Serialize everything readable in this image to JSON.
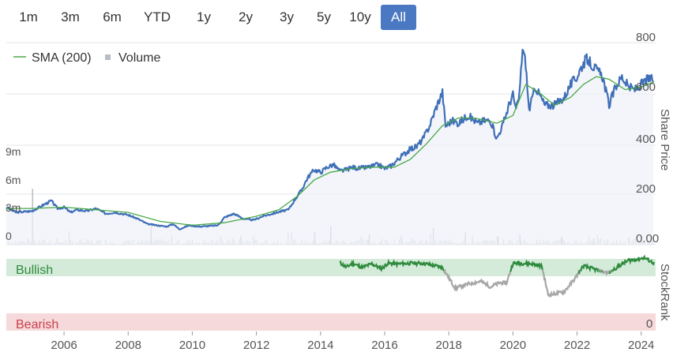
{
  "range_selector": {
    "buttons": [
      "1m",
      "3m",
      "6m",
      "YTD",
      "1y",
      "2y",
      "3y",
      "5y",
      "10y",
      "All"
    ],
    "active": "All"
  },
  "colors": {
    "price": "#3f6fb8",
    "sma": "#4aa84a",
    "volume": "#b8bcc4",
    "active_button": "#4a78c2",
    "bullish_band": "#d4ebd9",
    "bearish_band": "#f6d9db",
    "bullish_text": "#2e8b3d",
    "bearish_text": "#c8404c",
    "rank_bull_line": "#2e8b3d",
    "rank_bear_line": "#a6a6a6"
  },
  "chart_data": {
    "type": "line",
    "x_ticks": [
      "2006",
      "2008",
      "2010",
      "2012",
      "2014",
      "2016",
      "2018",
      "2020",
      "2022",
      "2024"
    ],
    "right_axis": {
      "label": "Share Price",
      "ticks": [
        "800",
        "600",
        "400",
        "200",
        "0.00"
      ],
      "ylim": [
        0,
        800
      ]
    },
    "volume_axis": {
      "ticks": [
        "9m",
        "6m",
        "3m",
        "0"
      ],
      "ylim": [
        0,
        9
      ]
    },
    "legend": [
      {
        "name": "SMA (200)",
        "symbol": "line"
      },
      {
        "name": "Volume",
        "symbol": "square"
      }
    ],
    "series": [
      {
        "name": "Share Price",
        "x": [
          2004.2,
          2004.5,
          2005.0,
          2005.3,
          2005.6,
          2005.8,
          2006.0,
          2006.2,
          2006.4,
          2006.7,
          2007.0,
          2007.3,
          2007.6,
          2008.0,
          2008.3,
          2008.6,
          2008.9,
          2009.2,
          2009.4,
          2009.6,
          2009.9,
          2010.2,
          2010.5,
          2010.8,
          2011.0,
          2011.3,
          2011.6,
          2011.9,
          2012.2,
          2012.5,
          2012.8,
          2013.0,
          2013.2,
          2013.4,
          2013.6,
          2013.8,
          2014.0,
          2014.2,
          2014.4,
          2014.6,
          2014.8,
          2015.0,
          2015.2,
          2015.5,
          2015.8,
          2016.0,
          2016.2,
          2016.5,
          2016.8,
          2017.0,
          2017.2,
          2017.4,
          2017.6,
          2017.8,
          2017.9,
          2018.1,
          2018.3,
          2018.6,
          2018.9,
          2019.1,
          2019.3,
          2019.5,
          2019.7,
          2019.9,
          2020.0,
          2020.1,
          2020.2,
          2020.3,
          2020.4,
          2020.5,
          2020.7,
          2021.0,
          2021.3,
          2021.6,
          2021.8,
          2022.0,
          2022.1,
          2022.3,
          2022.5,
          2022.8,
          2023.0,
          2023.2,
          2023.4,
          2023.6,
          2023.8,
          2024.0,
          2024.2,
          2024.4
        ],
        "values": [
          145,
          125,
          130,
          150,
          170,
          140,
          145,
          125,
          135,
          130,
          140,
          120,
          125,
          115,
          100,
          80,
          75,
          70,
          80,
          60,
          75,
          70,
          72,
          75,
          105,
          120,
          100,
          95,
          110,
          120,
          130,
          135,
          175,
          210,
          260,
          290,
          280,
          300,
          310,
          285,
          290,
          300,
          295,
          300,
          310,
          295,
          305,
          340,
          370,
          380,
          410,
          460,
          530,
          590,
          460,
          480,
          470,
          500,
          470,
          480,
          480,
          410,
          470,
          550,
          580,
          520,
          580,
          760,
          700,
          520,
          610,
          540,
          540,
          570,
          620,
          650,
          680,
          720,
          690,
          650,
          540,
          610,
          650,
          610,
          600,
          620,
          640,
          640
        ]
      },
      {
        "name": "SMA (200)",
        "x": [
          2004.2,
          2005.0,
          2006.0,
          2007.0,
          2008.0,
          2009.0,
          2010.0,
          2011.0,
          2012.0,
          2012.7,
          2013.3,
          2013.8,
          2014.3,
          2015.0,
          2015.7,
          2016.3,
          2016.8,
          2017.3,
          2017.8,
          2018.3,
          2018.8,
          2019.5,
          2020.0,
          2020.4,
          2020.8,
          2021.3,
          2021.8,
          2022.2,
          2022.6,
          2023.0,
          2023.5,
          2024.0,
          2024.4
        ],
        "values": [
          140,
          140,
          145,
          135,
          125,
          90,
          75,
          85,
          110,
          135,
          190,
          250,
          280,
          295,
          300,
          300,
          330,
          390,
          460,
          490,
          490,
          470,
          500,
          620,
          590,
          540,
          570,
          620,
          650,
          640,
          600,
          610,
          630
        ]
      },
      {
        "name": "Volume",
        "x": [
          2005.0,
          2008.7,
          2011.5,
          2013.8,
          2014.3,
          2015.5,
          2016.5,
          2017.5,
          2018.5,
          2019.5,
          2020.2,
          2021.5,
          2022.5,
          2023.6
        ],
        "values": [
          5.4,
          2.0,
          0.9,
          1.2,
          1.8,
          1.0,
          0.8,
          1.6,
          1.2,
          0.8,
          1.0,
          0.8,
          0.6,
          0.7
        ]
      }
    ],
    "stockrank": {
      "label": "StockRank",
      "bands": [
        "Bullish",
        "Bearish"
      ],
      "axis_ticks": [
        "0"
      ],
      "ylim": [
        0,
        100
      ],
      "series": {
        "name": "StockRank",
        "x": [
          2014.6,
          2014.8,
          2015.0,
          2015.3,
          2015.6,
          2015.9,
          2016.1,
          2016.4,
          2016.8,
          2017.2,
          2017.5,
          2017.8,
          2018.0,
          2018.2,
          2018.6,
          2019.0,
          2019.3,
          2019.6,
          2019.8,
          2020.0,
          2020.3,
          2020.6,
          2020.9,
          2021.1,
          2021.3,
          2021.6,
          2021.9,
          2022.2,
          2022.5,
          2022.8,
          2023.0,
          2023.3,
          2023.6,
          2023.9,
          2024.1,
          2024.4
        ],
        "values": [
          97,
          90,
          96,
          90,
          95,
          88,
          96,
          95,
          96,
          96,
          93,
          90,
          75,
          60,
          66,
          70,
          62,
          68,
          67,
          96,
          96,
          95,
          92,
          50,
          52,
          55,
          72,
          92,
          88,
          84,
          82,
          92,
          100,
          102,
          104,
          96
        ]
      }
    }
  }
}
